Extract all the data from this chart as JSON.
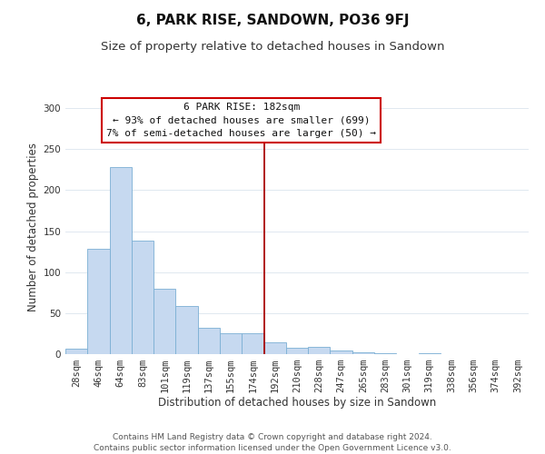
{
  "title": "6, PARK RISE, SANDOWN, PO36 9FJ",
  "subtitle": "Size of property relative to detached houses in Sandown",
  "xlabel": "Distribution of detached houses by size in Sandown",
  "ylabel": "Number of detached properties",
  "bar_color": "#c6d9f0",
  "bar_edge_color": "#7bafd4",
  "bin_labels": [
    "28sqm",
    "46sqm",
    "64sqm",
    "83sqm",
    "101sqm",
    "119sqm",
    "137sqm",
    "155sqm",
    "174sqm",
    "192sqm",
    "210sqm",
    "228sqm",
    "247sqm",
    "265sqm",
    "283sqm",
    "301sqm",
    "319sqm",
    "338sqm",
    "356sqm",
    "374sqm",
    "392sqm"
  ],
  "bar_values": [
    7,
    128,
    228,
    138,
    80,
    59,
    32,
    25,
    25,
    14,
    8,
    9,
    4,
    2,
    1,
    0,
    1,
    0,
    0,
    0,
    0
  ],
  "ylim": [
    0,
    310
  ],
  "yticks": [
    0,
    50,
    100,
    150,
    200,
    250,
    300
  ],
  "vline_x": 8.5,
  "vline_color": "#aa0000",
  "annotation_title": "6 PARK RISE: 182sqm",
  "annotation_line1": "← 93% of detached houses are smaller (699)",
  "annotation_line2": "7% of semi-detached houses are larger (50) →",
  "footer_line1": "Contains HM Land Registry data © Crown copyright and database right 2024.",
  "footer_line2": "Contains public sector information licensed under the Open Government Licence v3.0.",
  "grid_color": "#e0e8f0",
  "background_color": "#ffffff",
  "title_fontsize": 11,
  "subtitle_fontsize": 9.5,
  "label_fontsize": 8.5,
  "tick_fontsize": 7.5,
  "footer_fontsize": 6.5,
  "ann_fontsize": 8
}
